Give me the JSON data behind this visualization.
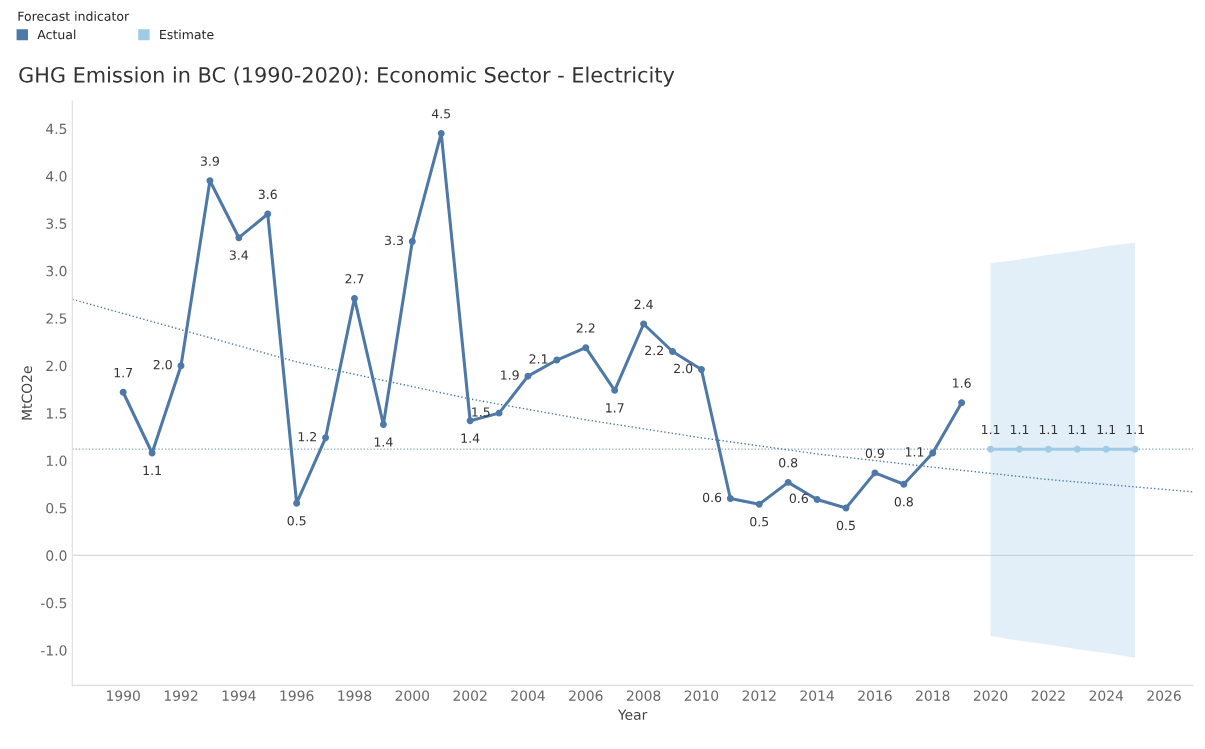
{
  "chart_data": {
    "type": "line",
    "title": "GHG Emission in BC (1990-2020): Economic Sector - Electricity",
    "xlabel": "Year",
    "ylabel": "MtCO2e",
    "legend_title": "Forecast indicator",
    "legend": "top",
    "grid": false,
    "xlim": [
      1988.24,
      2027.0
    ],
    "xticks": [
      1990,
      1992,
      1994,
      1996,
      1998,
      2000,
      2002,
      2004,
      2006,
      2008,
      2010,
      2012,
      2014,
      2016,
      2018,
      2020,
      2022,
      2024,
      2026
    ],
    "ylim": [
      -1.37,
      4.79
    ],
    "yticks": [
      {
        "value": -1,
        "label": "-1.0"
      },
      {
        "value": -0.5,
        "label": "-0.5"
      },
      {
        "value": 0,
        "label": "0.0"
      },
      {
        "value": 0.5,
        "label": "0.5"
      },
      {
        "value": 1,
        "label": "1.0"
      },
      {
        "value": 1.5,
        "label": "1.5"
      },
      {
        "value": 2,
        "label": "2.0"
      },
      {
        "value": 2.5,
        "label": "2.5"
      },
      {
        "value": 3,
        "label": "3.0"
      },
      {
        "value": 3.5,
        "label": "3.5"
      },
      {
        "value": 4,
        "label": "4.0"
      },
      {
        "value": 4.5,
        "label": "4.5"
      }
    ],
    "ref_lines": [
      {
        "axis": "y",
        "value": 0,
        "color": "#d9d9d9",
        "line_style": "solid"
      },
      {
        "axis": "y",
        "value": 1.12,
        "color": "#7f9fc4",
        "line_style": "dotted"
      }
    ],
    "series": [
      {
        "name": "Actual",
        "color": "#4e79a7",
        "marker": "circle",
        "line_style": "solid",
        "x": [
          1990,
          1991,
          1992,
          1993,
          1994,
          1995,
          1996,
          1997,
          1998,
          1999,
          2000,
          2001,
          2002,
          2003,
          2004,
          2005,
          2006,
          2007,
          2008,
          2009,
          2010,
          2011,
          2012,
          2013,
          2014,
          2015,
          2016,
          2017,
          2018,
          2019
        ],
        "values": [
          1.72,
          1.08,
          2.0,
          3.95,
          3.35,
          3.6,
          0.55,
          1.24,
          2.71,
          1.38,
          3.31,
          4.45,
          1.42,
          1.5,
          1.89,
          2.06,
          2.19,
          1.74,
          2.44,
          2.15,
          1.96,
          0.6,
          0.54,
          0.77,
          0.59,
          0.5,
          0.87,
          0.75,
          1.08,
          1.61
        ],
        "value_labels": [
          "1.7",
          "1.1",
          "2.0",
          "3.9",
          "3.4",
          "3.6",
          "0.5",
          "1.2",
          "2.7",
          "1.4",
          "3.3",
          "4.5",
          "1.4",
          "1.5",
          "1.9",
          "2.1",
          "2.2",
          "1.7",
          "2.4",
          "2.2",
          "2.0",
          "0.6",
          "0.5",
          "0.8",
          "0.6",
          "0.5",
          "0.9",
          "0.8",
          "1.1",
          "1.6"
        ]
      },
      {
        "name": "Estimate",
        "color": "#a0cbe8",
        "marker": "circle",
        "line_style": "solid",
        "x": [
          2020,
          2021,
          2022,
          2023,
          2024,
          2025
        ],
        "values": [
          1.12,
          1.12,
          1.12,
          1.12,
          1.12,
          1.12
        ],
        "value_labels": [
          "1.1",
          "1.1",
          "1.1",
          "1.1",
          "1.1",
          "1.1"
        ],
        "lower": [
          -0.85,
          -0.9,
          -0.94,
          -0.99,
          -1.03,
          -1.08
        ],
        "upper": [
          3.08,
          3.12,
          3.17,
          3.21,
          3.26,
          3.3
        ]
      },
      {
        "color": "#4e79a7",
        "marker": "none",
        "line_style": "dotted",
        "x": [
          1988.24,
          1996,
          2002,
          2006,
          2010,
          2014,
          2018,
          2022,
          2027.0
        ],
        "values": [
          2.7,
          2.04,
          1.65,
          1.43,
          1.24,
          1.07,
          0.93,
          0.8,
          0.67
        ]
      }
    ]
  }
}
